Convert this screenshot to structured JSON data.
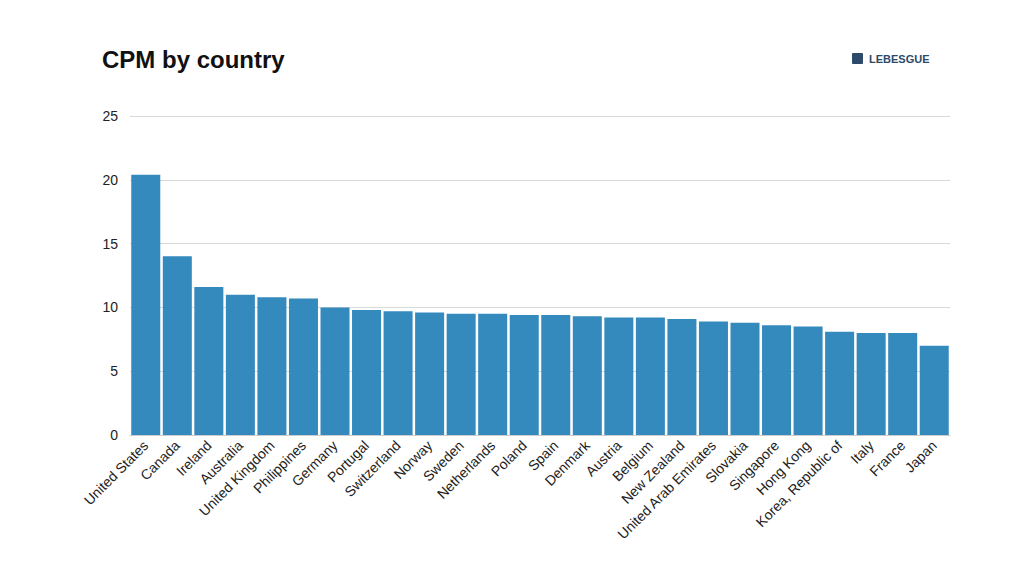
{
  "chart_data": {
    "type": "bar",
    "title": "CPM by country",
    "annotations": [
      "LEBESGUE"
    ],
    "categories": [
      "United States",
      "Canada",
      "Ireland",
      "Australia",
      "United Kingdom",
      "Philippines",
      "Germany",
      "Portugal",
      "Switzerland",
      "Norway",
      "Sweden",
      "Netherlands",
      "Poland",
      "Spain",
      "Denmark",
      "Austria",
      "Belgium",
      "New Zealand",
      "United Arab Emirates",
      "Slovakia",
      "Singapore",
      "Hong Kong",
      "Korea, Republic of",
      "Italy",
      "France",
      "Japan"
    ],
    "values": [
      20.4,
      14.0,
      11.6,
      11.0,
      10.8,
      10.7,
      10.0,
      9.8,
      9.7,
      9.6,
      9.5,
      9.5,
      9.4,
      9.4,
      9.3,
      9.2,
      9.2,
      9.1,
      8.9,
      8.8,
      8.6,
      8.5,
      8.1,
      8.0,
      8.0,
      7.0
    ],
    "color": "#348abd",
    "ylim": [
      0,
      25
    ],
    "yticks": [
      0,
      5,
      10,
      15,
      20,
      25
    ],
    "grid": true
  }
}
